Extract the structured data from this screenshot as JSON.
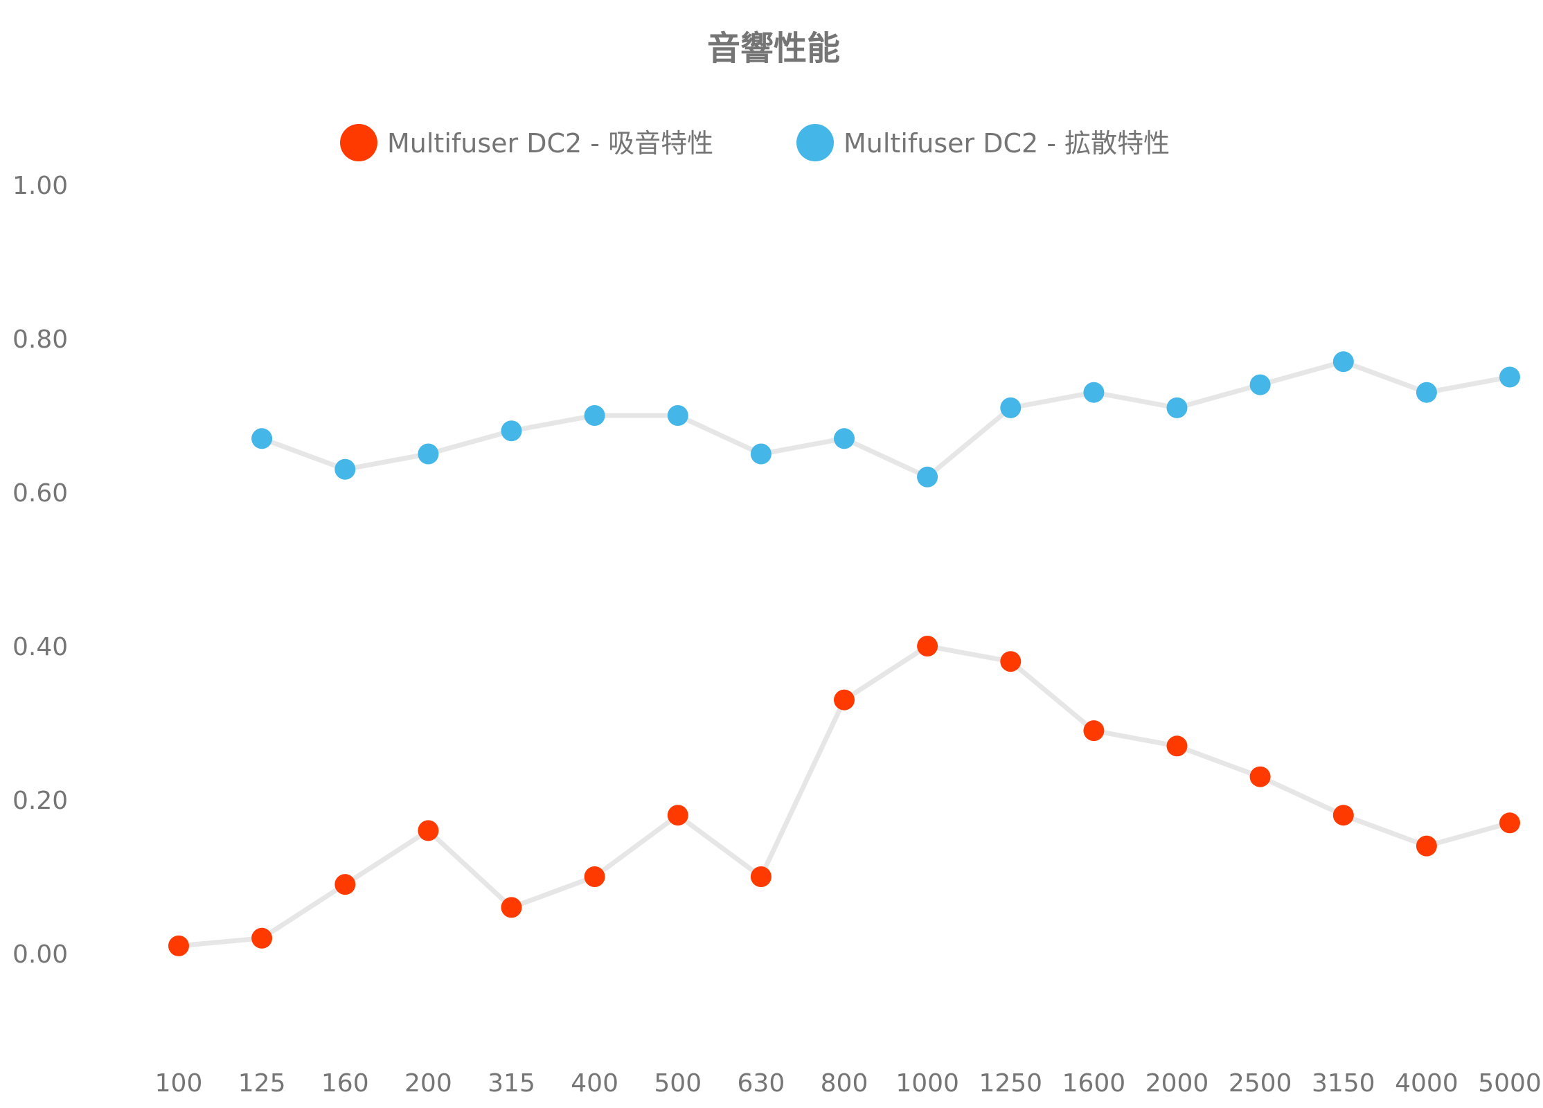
{
  "chart_data": {
    "type": "line",
    "title": "音響性能",
    "xlabel": "",
    "ylabel": "",
    "ylim": [
      -0.1,
      1.0
    ],
    "yticks": [
      "1.00",
      "0.80",
      "0.60",
      "0.40",
      "0.20",
      "0.00"
    ],
    "ytick_values": [
      1.0,
      0.8,
      0.6,
      0.4,
      0.2,
      0.0
    ],
    "categories": [
      "100",
      "125",
      "160",
      "200",
      "315",
      "400",
      "500",
      "630",
      "800",
      "1000",
      "1250",
      "1600",
      "2000",
      "2500",
      "3150",
      "4000",
      "5000"
    ],
    "grid": false,
    "legend_position": "top-center",
    "line_color": "#e6e6e6",
    "series": [
      {
        "name": "Multifuser DC2 - 吸音特性",
        "color": "#ff3a00",
        "values": [
          0.01,
          0.02,
          0.09,
          0.16,
          0.06,
          0.1,
          0.18,
          0.1,
          0.33,
          0.4,
          0.38,
          0.29,
          0.27,
          0.23,
          0.18,
          0.14,
          0.17
        ]
      },
      {
        "name": "Multifuser DC2 - 拡散特性",
        "color": "#45b6e8",
        "values": [
          null,
          0.67,
          0.63,
          0.65,
          0.68,
          0.7,
          0.7,
          0.65,
          0.67,
          0.62,
          0.71,
          0.73,
          0.71,
          0.74,
          0.77,
          0.73,
          0.75
        ]
      }
    ]
  }
}
